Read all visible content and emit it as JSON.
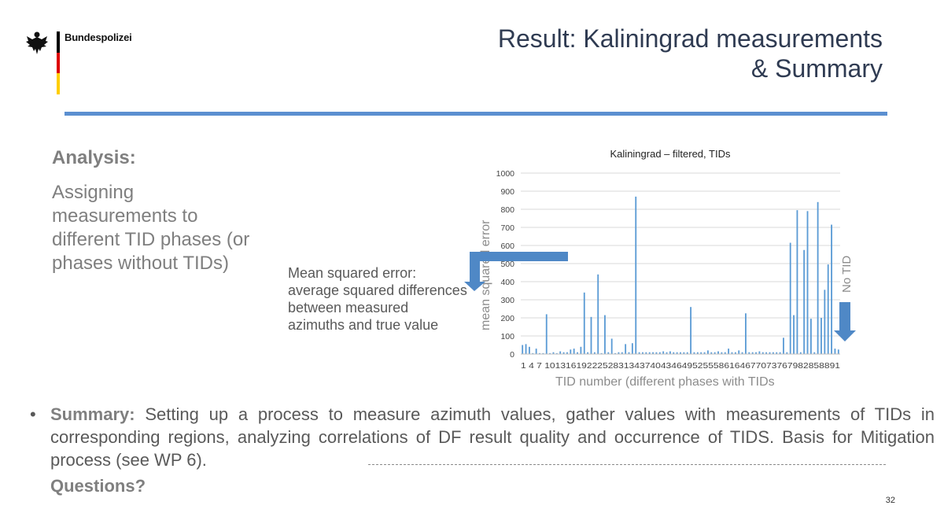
{
  "header": {
    "brand": "Bundespolizei",
    "title_line1": "Result: Kaliningrad measurements",
    "title_line2": "& Summary",
    "rule_color": "#5b8fd0"
  },
  "analysis": {
    "heading": "Analysis:",
    "text": "Assigning measurements to different TID phases (or phases without TIDs)"
  },
  "mse_note": "Mean squared error: average squared differences between measured azimuths and true value",
  "summary": {
    "bullet": "•",
    "label": "Summary:",
    "text": "Setting up a process to measure azimuth values, gather values with measurements of TIDs in corresponding regions, analyzing correlations of DF result quality and occurrence of TIDS. Basis for Mitigation process (see WP 6).",
    "questions": "Questions?"
  },
  "page_number": "32",
  "colors": {
    "bar": "#5b9bd5",
    "arrow": "#4f88c6",
    "grid": "#d9d9d9"
  },
  "chart_data": {
    "type": "bar",
    "title": "Kaliningrad – filtered, TIDs",
    "xlabel": "TID number (different phases with TIDs",
    "ylabel": "mean squared error",
    "ylim": [
      0,
      1000
    ],
    "yticks": [
      0,
      100,
      200,
      300,
      400,
      500,
      600,
      700,
      800,
      900,
      1000
    ],
    "xtick_text": "1  4  7  10131619222528313437404346495255586164677073767982858891",
    "annotation": "No TID",
    "categories": [
      1,
      2,
      3,
      4,
      5,
      6,
      7,
      8,
      9,
      10,
      11,
      12,
      13,
      14,
      15,
      16,
      17,
      18,
      19,
      20,
      21,
      22,
      23,
      24,
      25,
      26,
      27,
      28,
      29,
      30,
      31,
      32,
      33,
      34,
      35,
      36,
      37,
      38,
      39,
      40,
      41,
      42,
      43,
      44,
      45,
      46,
      47,
      48,
      49,
      50,
      51,
      52,
      53,
      54,
      55,
      56,
      57,
      58,
      59,
      60,
      61,
      62,
      63,
      64,
      65,
      66,
      67,
      68,
      69,
      70,
      71,
      72,
      73,
      74,
      75,
      76,
      77,
      78,
      79,
      80,
      81,
      82,
      83,
      84,
      85,
      86,
      87,
      88,
      89,
      90,
      91,
      92,
      93
    ],
    "values": [
      50,
      55,
      40,
      5,
      30,
      5,
      5,
      220,
      5,
      10,
      5,
      15,
      10,
      10,
      25,
      30,
      10,
      40,
      340,
      10,
      205,
      10,
      440,
      5,
      215,
      10,
      85,
      5,
      10,
      10,
      55,
      10,
      60,
      870,
      10,
      10,
      10,
      10,
      10,
      10,
      10,
      15,
      10,
      15,
      10,
      10,
      10,
      10,
      10,
      260,
      10,
      10,
      10,
      10,
      20,
      10,
      10,
      15,
      10,
      10,
      30,
      10,
      10,
      20,
      10,
      225,
      10,
      10,
      10,
      15,
      10,
      10,
      10,
      10,
      10,
      10,
      90,
      10,
      615,
      215,
      795,
      10,
      575,
      790,
      195,
      10,
      840,
      200,
      355,
      495,
      715,
      30,
      25
    ]
  }
}
